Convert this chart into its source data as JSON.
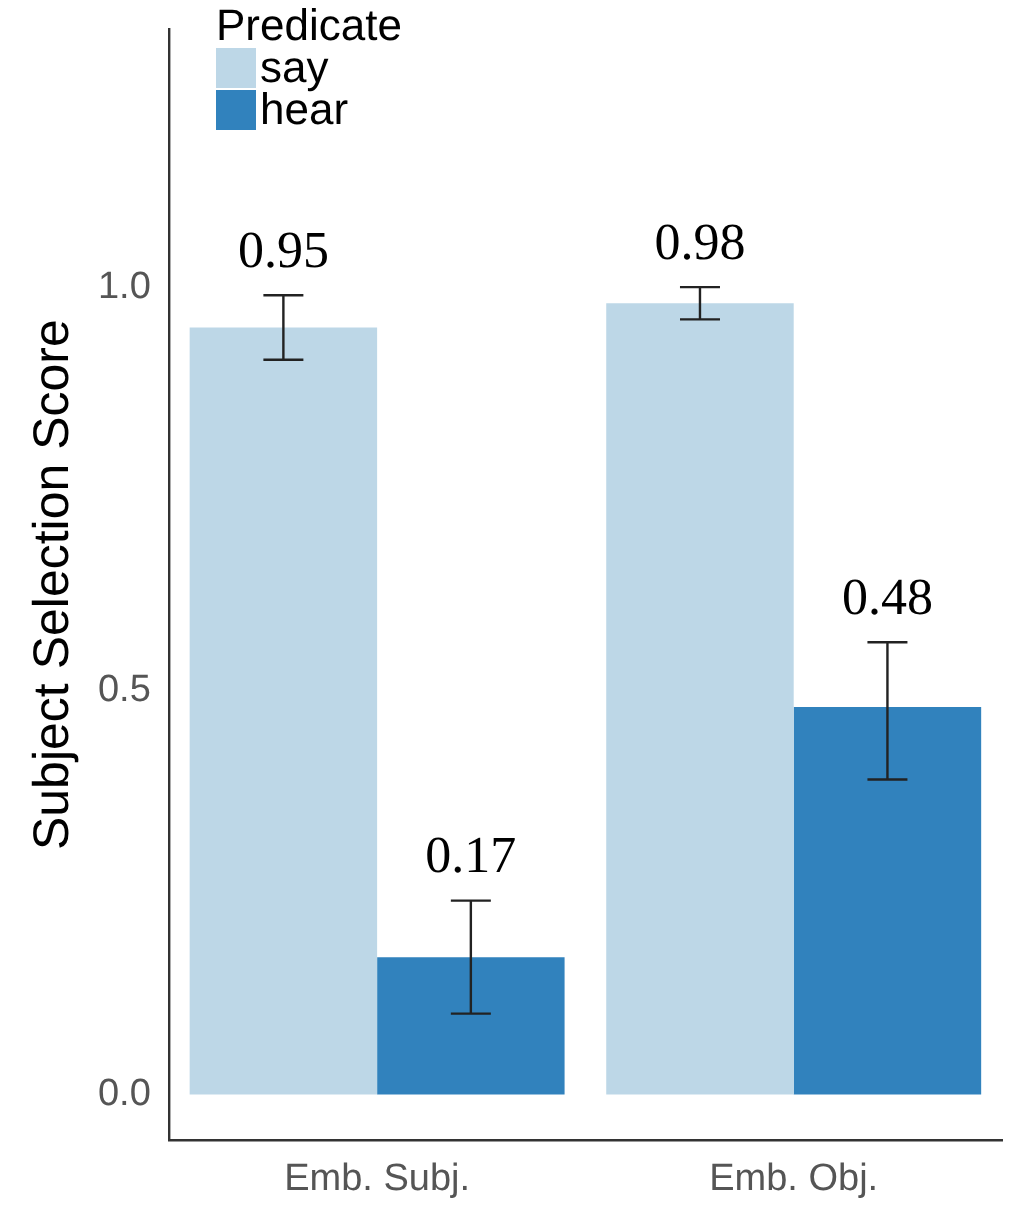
{
  "chart_data": {
    "type": "bar",
    "ylabel": "Subject Selection Score",
    "legend_title": "Predicate",
    "legend": "top left",
    "grid": false,
    "data_labels": true,
    "categories": [
      "Emb. Subj.",
      "Emb. Obj."
    ],
    "series": [
      {
        "name": "say",
        "color": "#bdd7e7",
        "values": [
          0.95,
          0.98
        ],
        "errors": [
          [
            0.91,
            0.99
          ],
          [
            0.96,
            1.0
          ]
        ]
      },
      {
        "name": "hear",
        "color": "#3182bd",
        "values": [
          0.17,
          0.48
        ],
        "errors": [
          [
            0.1,
            0.24
          ],
          [
            0.39,
            0.56
          ]
        ]
      }
    ],
    "ylim": [
      -0.057,
      1.32
    ],
    "yticks": [
      {
        "value": 0,
        "label": "0.0"
      },
      {
        "value": 0.5,
        "label": "0.5"
      },
      {
        "value": 1,
        "label": "1.0"
      }
    ]
  }
}
